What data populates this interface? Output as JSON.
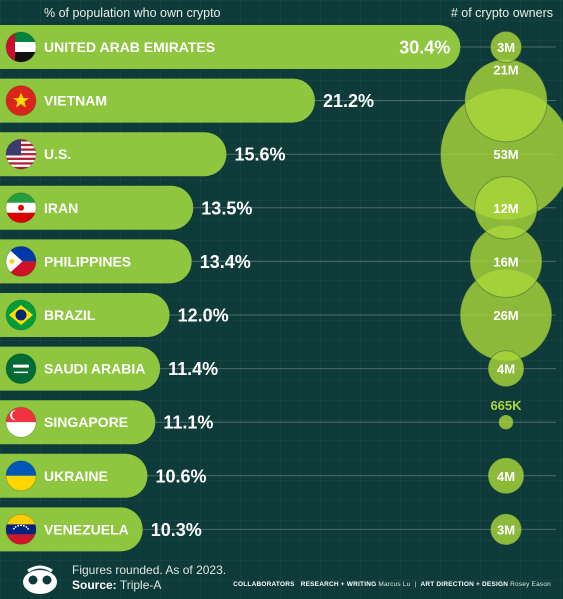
{
  "header": {
    "left": "% of population who own crypto",
    "right": "# of crypto owners"
  },
  "chart_data": {
    "type": "bar",
    "orientation": "horizontal",
    "title": "",
    "xlabel": "% of population who own crypto",
    "secondary_label": "# of crypto owners",
    "categories": [
      "UNITED ARAB EMIRATES",
      "VIETNAM",
      "U.S.",
      "IRAN",
      "PHILIPPINES",
      "BRAZIL",
      "SAUDI ARABIA",
      "SINGAPORE",
      "UKRAINE",
      "VENEZUELA"
    ],
    "values": [
      30.4,
      21.2,
      15.6,
      13.5,
      13.4,
      12.0,
      11.4,
      11.1,
      10.6,
      10.3
    ],
    "value_labels": [
      "30.4%",
      "21.2%",
      "15.6%",
      "13.5%",
      "13.4%",
      "12.0%",
      "11.4%",
      "11.1%",
      "10.6%",
      "10.3%"
    ],
    "owners_millions": [
      3,
      21,
      53,
      12,
      16,
      26,
      4,
      0.665,
      4,
      3
    ],
    "owner_labels": [
      "3M",
      "21M",
      "53M",
      "12M",
      "16M",
      "26M",
      "4M",
      "665K",
      "4M",
      "3M"
    ],
    "flags": [
      "uae-flag-icon",
      "vietnam-flag-icon",
      "us-flag-icon",
      "iran-flag-icon",
      "philippines-flag-icon",
      "brazil-flag-icon",
      "saudi-arabia-flag-icon",
      "singapore-flag-icon",
      "ukraine-flag-icon",
      "venezuela-flag-icon"
    ],
    "colors": {
      "bar": "#8ec63f",
      "bubble": "#a9d63a",
      "background": "#0f3a3a"
    }
  },
  "footer": {
    "note": "Figures rounded. As of 2023.",
    "source_label": "Source:",
    "source": "Triple-A",
    "collaborators": "COLLABORATORS",
    "research": "RESEARCH + WRITING",
    "research_name": "Marcus Lu",
    "art": "ART DIRECTION + DESIGN",
    "art_name": "Rosey Eason",
    "logo_icon": "visual-capitalist-logo-icon"
  }
}
